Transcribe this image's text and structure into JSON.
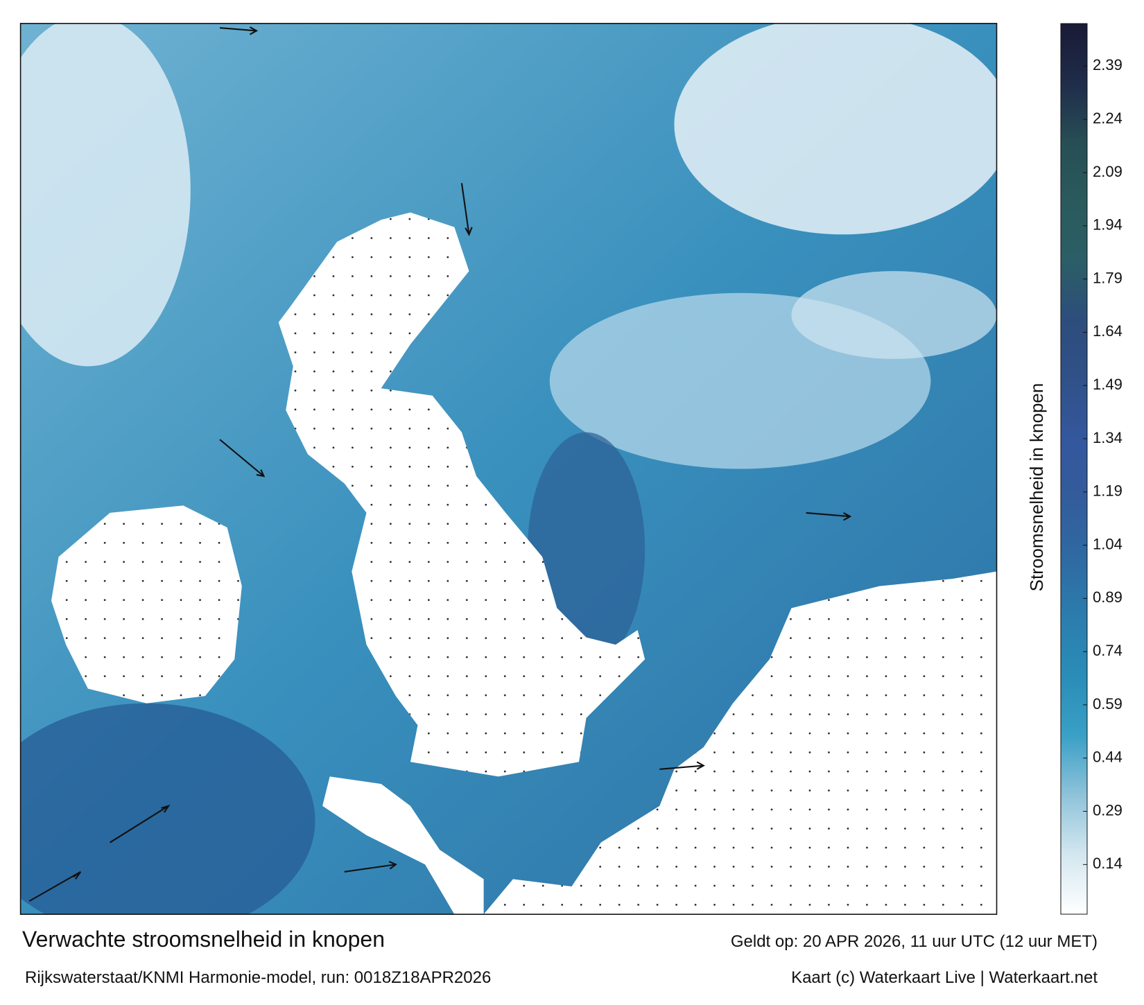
{
  "map": {
    "title": "Verwachte stroomsnelheid in knopen",
    "subtitle": "Rijkswaterstaat/KNMI Harmonie-model, run: 0018Z18APR2026",
    "valid_time": "Geldt op: 20 APR 2026, 11 uur UTC (12 uur MET)",
    "credit": "Kaart (c) Waterkaart Live | Waterkaart.net",
    "colorbar": {
      "label": "Stroomsnelheid in knopen",
      "lim": [
        0,
        2.51
      ],
      "ticks": [
        0.14,
        0.29,
        0.44,
        0.59,
        0.74,
        0.89,
        1.04,
        1.19,
        1.34,
        1.49,
        1.64,
        1.79,
        1.94,
        2.09,
        2.24,
        2.39
      ],
      "colors": [
        "#ffffff",
        "#d4e7f0",
        "#8fc3da",
        "#3aa0c6",
        "#2a8db8",
        "#2b7dad",
        "#2f6aa2",
        "#335c9c",
        "#34579d",
        "#305189",
        "#2d4d7c",
        "#2b5e66",
        "#2a5a5c",
        "#274e55",
        "#1f2c4a",
        "#191a36"
      ]
    }
  }
}
